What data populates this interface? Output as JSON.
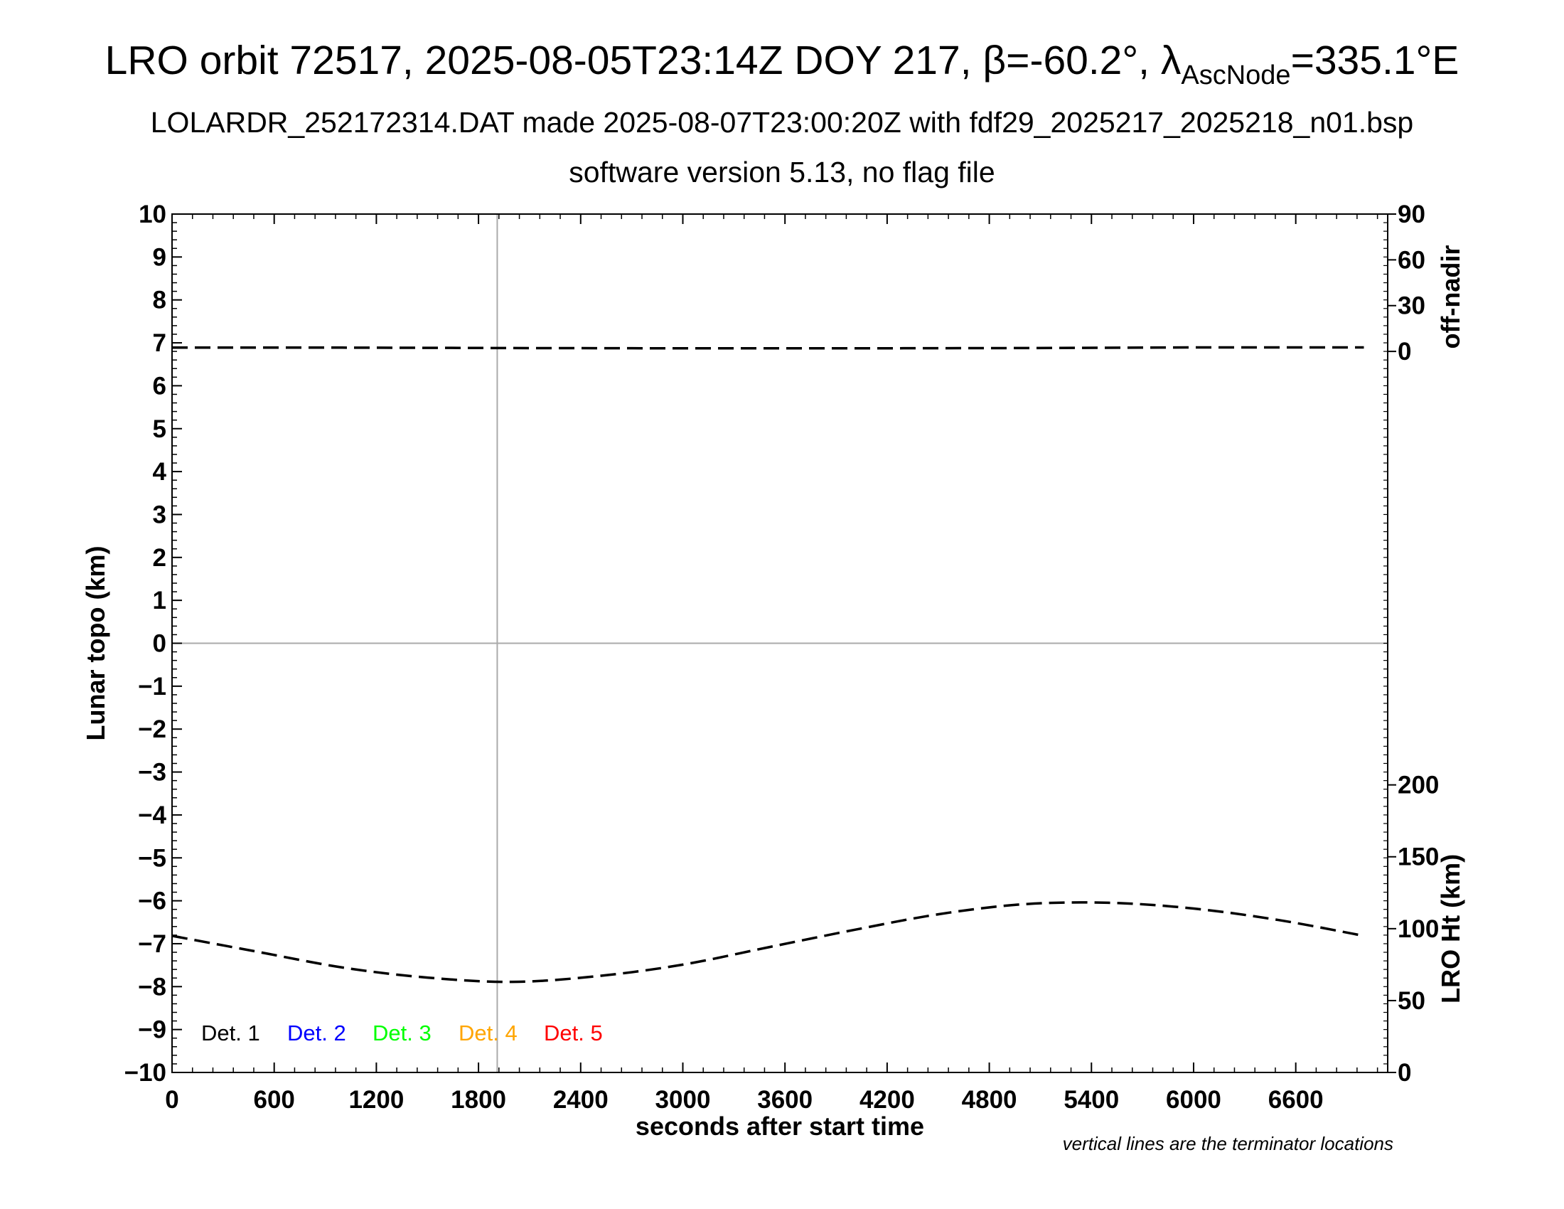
{
  "title": {
    "main": "LRO orbit 72517, 2025-08-05T23:14Z DOY 217, β=-60.2°, λ",
    "sub": "AscNode",
    "tail": "=335.1°E"
  },
  "subtitle": "LOLARDR_252172314.DAT made 2025-08-07T23:00:20Z with fdf29_2025217_2025218_n01.bsp",
  "software_line": "software version 5.13, no flag file",
  "footnote": "vertical lines are the terminator locations",
  "colors": {
    "det1": "#000000",
    "det2": "#0000ff",
    "det3": "#00ff00",
    "det4": "#ffa500",
    "det5": "#ff0000",
    "gridline": "#aaaaaa"
  },
  "chart_data": {
    "type": "line",
    "xlabel": "seconds after start time",
    "ylabel": "Lunar topo (km)",
    "xlim": [
      0,
      7140
    ],
    "ylim": [
      -10,
      10
    ],
    "x_ticks": [
      "0",
      "600",
      "1200",
      "1800",
      "2400",
      "3000",
      "3600",
      "4200",
      "4800",
      "5400",
      "6000",
      "6600"
    ],
    "y_ticks": [
      "10",
      "9",
      "8",
      "7",
      "6",
      "5",
      "4",
      "3",
      "2",
      "1",
      "0",
      "−1",
      "−2",
      "−3",
      "−4",
      "−5",
      "−6",
      "−7",
      "−8",
      "−9",
      "−10"
    ],
    "terminator_x": [
      1910
    ],
    "zero_line_y": 0,
    "right_axis_top": {
      "label": "off-nadir",
      "ticks": [
        "90",
        "60",
        "30",
        "0"
      ],
      "tick_values": [
        90,
        60,
        30,
        0
      ]
    },
    "right_axis_bottom": {
      "label": "LRO Ht (km)",
      "ticks": [
        "200",
        "150",
        "100",
        "50",
        "0"
      ],
      "tick_values": [
        200,
        150,
        100,
        50,
        0
      ],
      "range": [
        0,
        200
      ]
    },
    "legend": [
      "Det. 1",
      "Det. 2",
      "Det. 3",
      "Det. 4",
      "Det. 5"
    ],
    "legend_placement": "bottom-left",
    "series": [
      {
        "name": "off-nadir",
        "style": "dashed",
        "axis": "off-nadir (deg)",
        "x": [
          0,
          1000,
          2000,
          3000,
          4000,
          5000,
          6000,
          7000
        ],
        "y": [
          2.5,
          2.5,
          2.2,
          2.0,
          2.0,
          2.2,
          2.6,
          2.6
        ]
      },
      {
        "name": "LRO Ht",
        "style": "dashed",
        "axis": "LRO Ht (km)",
        "x": [
          0,
          500,
          1000,
          1500,
          2000,
          2500,
          3000,
          3500,
          4000,
          4500,
          5000,
          5500,
          6000,
          6500,
          7000
        ],
        "y": [
          95,
          84,
          73,
          66,
          63,
          67,
          75,
          87,
          99,
          110,
          117,
          118,
          114,
          106,
          95
        ]
      }
    ]
  }
}
